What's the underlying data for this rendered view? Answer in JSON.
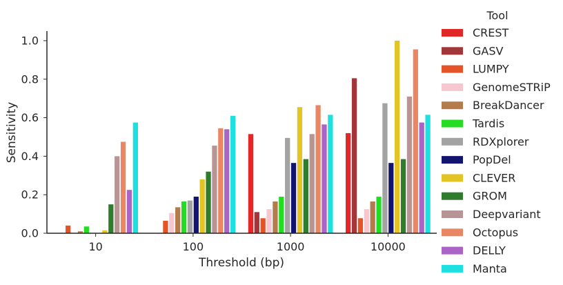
{
  "chart_data": {
    "type": "bar",
    "xlabel": "Threshold (bp)",
    "ylabel": "Sensitivity",
    "ylim": [
      0,
      1.05
    ],
    "yticks": [
      "0.0",
      "0.2",
      "0.4",
      "0.6",
      "0.8",
      "1.0"
    ],
    "grid": false,
    "legend": {
      "title": "Tool",
      "placement": "right"
    },
    "categories": [
      "10",
      "100",
      "1000",
      "10000"
    ],
    "series": [
      {
        "name": "CREST",
        "color": "#e32726",
        "values": [
          0.0,
          0.0,
          0.515,
          0.52
        ]
      },
      {
        "name": "GASV",
        "color": "#a33638",
        "values": [
          0.0,
          0.0,
          0.11,
          0.805
        ]
      },
      {
        "name": "LUMPY",
        "color": "#e35527",
        "values": [
          0.04,
          0.065,
          0.078,
          0.078
        ]
      },
      {
        "name": "GenomeSTRiP",
        "color": "#f8c6cf",
        "values": [
          0.0,
          0.105,
          0.125,
          0.125
        ]
      },
      {
        "name": "BreakDancer",
        "color": "#b47b4c",
        "values": [
          0.01,
          0.135,
          0.165,
          0.165
        ]
      },
      {
        "name": "Tardis",
        "color": "#22dd22",
        "values": [
          0.035,
          0.165,
          0.19,
          0.19
        ]
      },
      {
        "name": "RDXplorer",
        "color": "#a3a3a3",
        "values": [
          0.0,
          0.17,
          0.495,
          0.675
        ]
      },
      {
        "name": "PopDel",
        "color": "#131470",
        "values": [
          0.0,
          0.19,
          0.365,
          0.365
        ]
      },
      {
        "name": "CLEVER",
        "color": "#e2c425",
        "values": [
          0.015,
          0.28,
          0.655,
          1.0
        ]
      },
      {
        "name": "GROM",
        "color": "#2f7c2f",
        "values": [
          0.15,
          0.32,
          0.385,
          0.385
        ]
      },
      {
        "name": "Deepvariant",
        "color": "#b99494",
        "values": [
          0.4,
          0.455,
          0.515,
          0.71
        ]
      },
      {
        "name": "Octopus",
        "color": "#e98765",
        "values": [
          0.475,
          0.545,
          0.665,
          0.955
        ]
      },
      {
        "name": "DELLY",
        "color": "#a964c6",
        "values": [
          0.225,
          0.54,
          0.565,
          0.575
        ]
      },
      {
        "name": "Manta",
        "color": "#1ee0e0",
        "values": [
          0.575,
          0.61,
          0.615,
          0.615
        ]
      }
    ]
  }
}
